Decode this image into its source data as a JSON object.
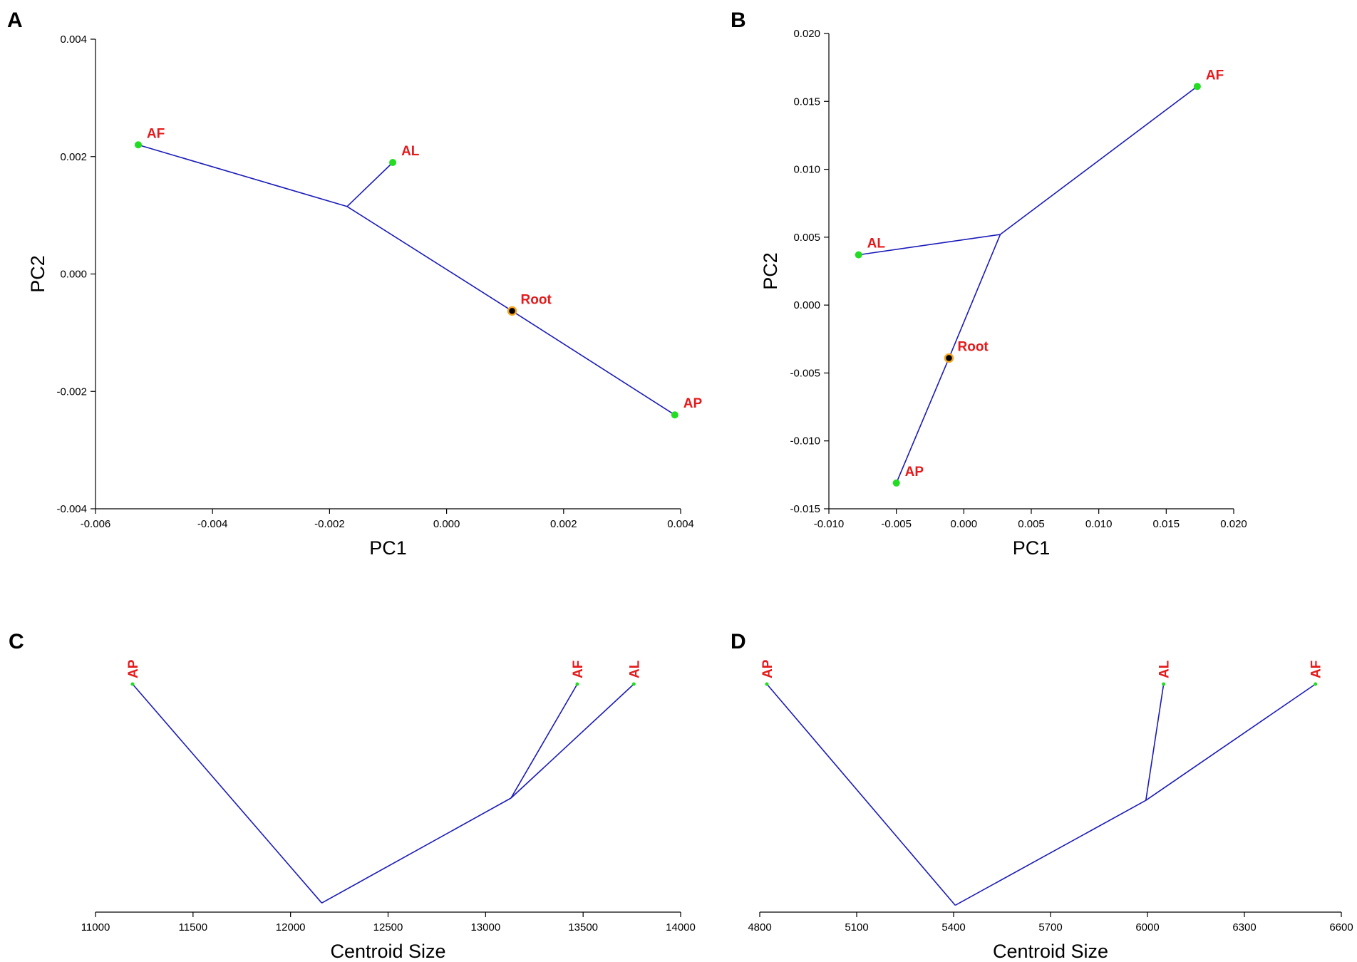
{
  "chart_data": [
    {
      "panel": "A",
      "type": "scatter",
      "xlabel": "PC1",
      "ylabel": "PC2",
      "xlim": [
        -0.006,
        0.004
      ],
      "ylim": [
        -0.004,
        0.004
      ],
      "xticks": [
        -0.006,
        -0.004,
        -0.002,
        0.0,
        0.002,
        0.004
      ],
      "xtick_labels": [
        "-0.006",
        "-0.004",
        "-0.002",
        "0.000",
        "0.002",
        "0.004"
      ],
      "yticks": [
        -0.004,
        -0.002,
        0.0,
        0.002,
        0.004
      ],
      "ytick_labels": [
        "-0.004",
        "-0.002",
        "0.000",
        "0.002",
        "0.004"
      ],
      "nodes": [
        {
          "id": "AF",
          "label": "AF",
          "x": -0.00527,
          "y": 0.0022,
          "kind": "tip"
        },
        {
          "id": "AL",
          "label": "AL",
          "x": -0.00092,
          "y": 0.0019,
          "kind": "tip"
        },
        {
          "id": "AP",
          "label": "AP",
          "x": 0.0039,
          "y": -0.0024,
          "kind": "tip"
        },
        {
          "id": "Root",
          "label": "Root",
          "x": 0.00112,
          "y": -0.00063,
          "kind": "root"
        },
        {
          "id": "n1",
          "label": "",
          "x": -0.0017,
          "y": 0.00115,
          "kind": "internal"
        }
      ],
      "edges": [
        [
          "AF",
          "n1"
        ],
        [
          "AL",
          "n1"
        ],
        [
          "n1",
          "Root"
        ],
        [
          "Root",
          "AP"
        ]
      ],
      "label_position": "right"
    },
    {
      "panel": "B",
      "type": "scatter",
      "xlabel": "PC1",
      "ylabel": "PC2",
      "xlim": [
        -0.01,
        0.02
      ],
      "ylim": [
        -0.015,
        0.02
      ],
      "xticks": [
        -0.01,
        -0.005,
        0.0,
        0.005,
        0.01,
        0.015,
        0.02
      ],
      "xtick_labels": [
        "-0.010",
        "-0.005",
        "0.000",
        "0.005",
        "0.010",
        "0.015",
        "0.020"
      ],
      "yticks": [
        -0.015,
        -0.01,
        -0.005,
        0.0,
        0.005,
        0.01,
        0.015,
        0.02
      ],
      "ytick_labels": [
        "-0.015",
        "-0.010",
        "-0.005",
        "0.000",
        "0.005",
        "0.010",
        "0.015",
        "0.020"
      ],
      "nodes": [
        {
          "id": "AF",
          "label": "AF",
          "x": 0.0173,
          "y": 0.0161,
          "kind": "tip"
        },
        {
          "id": "AL",
          "label": "AL",
          "x": -0.0078,
          "y": 0.0037,
          "kind": "tip"
        },
        {
          "id": "AP",
          "label": "AP",
          "x": -0.005,
          "y": -0.0131,
          "kind": "tip"
        },
        {
          "id": "Root",
          "label": "Root",
          "x": -0.0011,
          "y": -0.0039,
          "kind": "root"
        },
        {
          "id": "n1",
          "label": "",
          "x": 0.0027,
          "y": 0.0052,
          "kind": "internal"
        }
      ],
      "edges": [
        [
          "AF",
          "n1"
        ],
        [
          "AL",
          "n1"
        ],
        [
          "n1",
          "Root"
        ],
        [
          "Root",
          "AP"
        ]
      ],
      "label_position": "right"
    },
    {
      "panel": "C",
      "type": "line",
      "xlabel": "Centroid Size",
      "ylabel": "",
      "xlim": [
        11000,
        14000
      ],
      "ylim": [
        0,
        1
      ],
      "xticks": [
        11000,
        11500,
        12000,
        12500,
        13000,
        13500,
        14000
      ],
      "xtick_labels": [
        "11000",
        "11500",
        "12000",
        "12500",
        "13000",
        "13500",
        "14000"
      ],
      "nodes": [
        {
          "id": "AP",
          "label": "AP",
          "x": 11190,
          "y": 1.0,
          "kind": "tip"
        },
        {
          "id": "AF",
          "label": "AF",
          "x": 13470,
          "y": 1.0,
          "kind": "tip"
        },
        {
          "id": "AL",
          "label": "AL",
          "x": 13760,
          "y": 1.0,
          "kind": "tip"
        },
        {
          "id": "root",
          "label": "",
          "x": 12160,
          "y": 0.04,
          "kind": "internal"
        },
        {
          "id": "n1",
          "label": "",
          "x": 13130,
          "y": 0.5,
          "kind": "internal"
        }
      ],
      "edges": [
        [
          "AP",
          "root"
        ],
        [
          "root",
          "n1"
        ],
        [
          "n1",
          "AF"
        ],
        [
          "n1",
          "AL"
        ]
      ],
      "label_position": "vertical-top"
    },
    {
      "panel": "D",
      "type": "line",
      "xlabel": "Centroid Size",
      "ylabel": "",
      "xlim": [
        4800,
        6600
      ],
      "ylim": [
        0,
        1
      ],
      "xticks": [
        4800,
        5100,
        5400,
        5700,
        6000,
        6300,
        6600
      ],
      "xtick_labels": [
        "4800",
        "5100",
        "5400",
        "5700",
        "6000",
        "6300",
        "6600"
      ],
      "nodes": [
        {
          "id": "AP",
          "label": "AP",
          "x": 4822,
          "y": 1.0,
          "kind": "tip"
        },
        {
          "id": "AL",
          "label": "AL",
          "x": 6050,
          "y": 1.0,
          "kind": "tip"
        },
        {
          "id": "AF",
          "label": "AF",
          "x": 6520,
          "y": 1.0,
          "kind": "tip"
        },
        {
          "id": "root",
          "label": "",
          "x": 5405,
          "y": 0.03,
          "kind": "internal"
        },
        {
          "id": "n1",
          "label": "",
          "x": 5995,
          "y": 0.49,
          "kind": "internal"
        }
      ],
      "edges": [
        [
          "AP",
          "root"
        ],
        [
          "root",
          "n1"
        ],
        [
          "n1",
          "AL"
        ],
        [
          "n1",
          "AF"
        ]
      ],
      "label_position": "vertical-top"
    }
  ]
}
